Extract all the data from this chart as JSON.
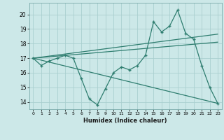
{
  "x": [
    0,
    1,
    2,
    3,
    4,
    5,
    6,
    7,
    8,
    9,
    10,
    11,
    12,
    13,
    14,
    15,
    16,
    17,
    18,
    19,
    20,
    21,
    22,
    23
  ],
  "line1": [
    17.0,
    16.5,
    16.8,
    17.0,
    17.2,
    17.0,
    15.6,
    14.2,
    13.8,
    14.9,
    16.0,
    16.4,
    16.2,
    16.5,
    17.2,
    19.5,
    18.8,
    19.2,
    20.3,
    18.7,
    18.3,
    16.5,
    15.0,
    13.9
  ],
  "line2_x": [
    0,
    23
  ],
  "line2_y": [
    17.0,
    18.65
  ],
  "line3_x": [
    0,
    23
  ],
  "line3_y": [
    17.0,
    13.9
  ],
  "line4_x": [
    0,
    23
  ],
  "line4_y": [
    17.0,
    18.1
  ],
  "line_color": "#2e7d6f",
  "bg_color": "#cce8e8",
  "grid_color": "#aacfcf",
  "xlabel": "Humidex (Indice chaleur)",
  "ylim": [
    13.5,
    20.8
  ],
  "xlim": [
    -0.5,
    23.5
  ],
  "yticks": [
    14,
    15,
    16,
    17,
    18,
    19,
    20
  ],
  "xticks": [
    0,
    1,
    2,
    3,
    4,
    5,
    6,
    7,
    8,
    9,
    10,
    11,
    12,
    13,
    14,
    15,
    16,
    17,
    18,
    19,
    20,
    21,
    22,
    23
  ]
}
